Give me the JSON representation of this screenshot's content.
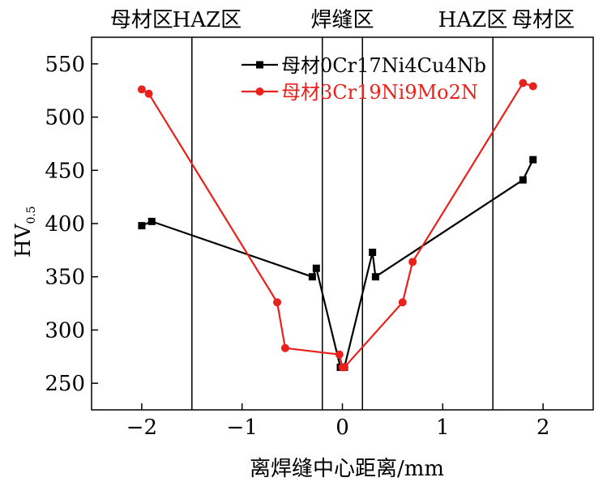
{
  "chart_data": {
    "type": "line",
    "xlabel": "离焊缝中心距离/mm",
    "ylabel": "HV",
    "ylabel_sub": "0.5",
    "xlim": [
      -2.5,
      2.5
    ],
    "ylim": [
      225,
      575
    ],
    "x_ticks": [
      "−2",
      "−1",
      "0",
      "1",
      "2"
    ],
    "x_tick_values": [
      -2,
      -1,
      0,
      1,
      2
    ],
    "y_ticks": [
      "250",
      "300",
      "350",
      "400",
      "450",
      "500",
      "550"
    ],
    "y_tick_values": [
      250,
      300,
      350,
      400,
      450,
      500,
      550
    ],
    "region_boundaries": [
      -1.5,
      -0.2,
      0.2,
      1.5
    ],
    "region_labels": [
      {
        "text": "母材区",
        "x": -2.0
      },
      {
        "text": "HAZ区",
        "x": -1.35
      },
      {
        "text": "焊缝区",
        "x": 0.0
      },
      {
        "text": "HAZ区",
        "x": 1.3
      },
      {
        "text": "母材区",
        "x": 2.0
      }
    ],
    "legend_position": "top-right",
    "series": [
      {
        "name": "母材0Cr17Ni4Cu4Nb",
        "color": "#000000",
        "marker": "square",
        "points": [
          [
            -2.0,
            398
          ],
          [
            -1.9,
            402
          ],
          [
            -0.3,
            350
          ],
          [
            -0.26,
            358
          ],
          [
            -0.02,
            265
          ],
          [
            0.02,
            265
          ],
          [
            0.3,
            373
          ],
          [
            0.33,
            350
          ],
          [
            1.8,
            441
          ],
          [
            1.9,
            460
          ]
        ]
      },
      {
        "name": "母材3Cr19Ni9Mo2N",
        "color": "#e8211c",
        "marker": "circle",
        "points": [
          [
            -2.0,
            526
          ],
          [
            -1.93,
            522
          ],
          [
            -0.65,
            326
          ],
          [
            -0.57,
            283
          ],
          [
            -0.03,
            277
          ],
          [
            0.0,
            265
          ],
          [
            0.02,
            265
          ],
          [
            0.6,
            326
          ],
          [
            0.7,
            364
          ],
          [
            1.8,
            532
          ],
          [
            1.9,
            529
          ]
        ]
      }
    ]
  }
}
